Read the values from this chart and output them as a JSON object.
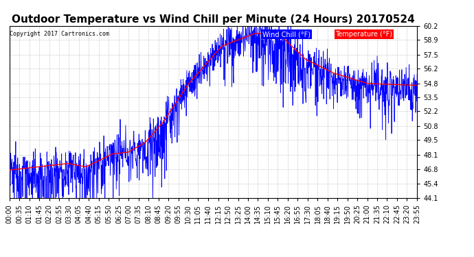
{
  "title": "Outdoor Temperature vs Wind Chill per Minute (24 Hours) 20170524",
  "copyright": "Copyright 2017 Cartronics.com",
  "legend_labels": [
    "Wind Chill (°F)",
    "Temperature (°F)"
  ],
  "legend_colors": [
    "blue",
    "red"
  ],
  "ylim": [
    44.1,
    60.2
  ],
  "yticks": [
    44.1,
    45.4,
    46.8,
    48.1,
    49.5,
    50.8,
    52.2,
    53.5,
    54.8,
    56.2,
    57.5,
    58.9,
    60.2
  ],
  "bg_color": "#ffffff",
  "grid_color": "#cccccc",
  "temp_color": "#ff0000",
  "wind_color": "#0000ff",
  "title_fontsize": 11,
  "axis_fontsize": 7,
  "total_minutes": 1440,
  "x_tick_labels": [
    "00:00",
    "00:35",
    "01:10",
    "01:45",
    "02:20",
    "02:55",
    "03:30",
    "04:05",
    "04:40",
    "05:15",
    "05:50",
    "06:25",
    "07:00",
    "07:35",
    "08:10",
    "08:45",
    "09:20",
    "09:55",
    "10:30",
    "11:05",
    "11:40",
    "12:15",
    "12:50",
    "13:25",
    "14:00",
    "14:35",
    "15:10",
    "15:45",
    "16:20",
    "16:55",
    "17:30",
    "18:05",
    "18:40",
    "19:15",
    "19:50",
    "20:25",
    "21:00",
    "21:35",
    "22:10",
    "22:45",
    "23:20",
    "23:55"
  ]
}
